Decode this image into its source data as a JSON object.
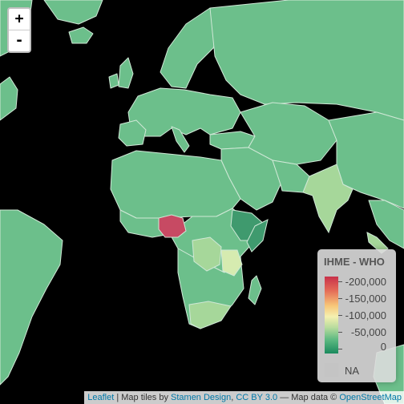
{
  "zoom": {
    "in_label": "+",
    "out_label": "-"
  },
  "legend": {
    "title": "IHME - WHO",
    "ticks": [
      "-200,000",
      "-150,000",
      "-100,000",
      "-50,000",
      "0"
    ],
    "na_label": "NA",
    "colors": {
      "high": "#c8314a",
      "mid": "#f5f0b0",
      "low": "#1a8a5e",
      "na": "#c4c4c4"
    }
  },
  "attribution": {
    "leaflet": "Leaflet",
    "sep1": " | Map tiles by ",
    "stamen": "Stamen Design",
    "sep2": ", ",
    "license": "CC BY 3.0",
    "sep3": " — Map data © ",
    "osm": "OpenStreetMap"
  },
  "map_colors": {
    "land": "#6cbf8b",
    "nigeria": "#c74a63",
    "light": "#a6d79a",
    "pale": "#d6ebb0",
    "dark": "#3f9a6e",
    "border": "#cfe8d6"
  }
}
